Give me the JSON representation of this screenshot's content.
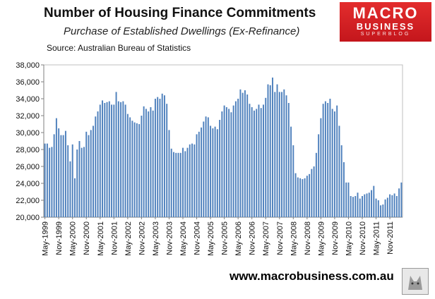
{
  "header": {
    "title": "Number of Housing  Finance Commitments",
    "subtitle": "Purchase of Established Dwellings (Ex-Refinance)",
    "source": "Source:  Australian Bureau of Statistics"
  },
  "logo": {
    "line1": "MACRO",
    "line2": "BUSINESS",
    "line3": "SUPERBLOG"
  },
  "footer": {
    "website": "www.macrobusiness.com.au"
  },
  "colors": {
    "bar": "#4f81bd",
    "plot_background": "#ffffff",
    "logo_red": "#d1202a"
  },
  "chart_data": {
    "type": "bar",
    "title": "Number of Housing  Finance Commitments",
    "subtitle": "Purchase of Established Dwellings (Ex-Refinance)",
    "xlabel": "",
    "ylabel": "",
    "ylim": [
      20000,
      38000
    ],
    "yticks": [
      "20,000",
      "22,000",
      "24,000",
      "26,000",
      "28,000",
      "30,000",
      "32,000",
      "34,000",
      "36,000",
      "38,000"
    ],
    "xtick_labels": [
      "May-1999",
      "Nov-1999",
      "May-2000",
      "Nov-2000",
      "May-2001",
      "Nov-2001",
      "May-2002",
      "Nov-2002",
      "May-2003",
      "Nov-2003",
      "May-2004",
      "Nov-2004",
      "May-2005",
      "Nov-2005",
      "May-2006",
      "Nov-2006",
      "May-2007",
      "Nov-2007",
      "May-2008",
      "Nov-2008",
      "May-2009",
      "Nov-2009",
      "May-2010",
      "Nov-2010",
      "May-2011",
      "Nov-2011"
    ],
    "grid": false,
    "legend": "none",
    "start_period": "May-1999",
    "frequency": "monthly",
    "values": [
      28700,
      28700,
      28200,
      28300,
      29800,
      31700,
      30500,
      29700,
      29700,
      30200,
      28500,
      26600,
      28600,
      24600,
      28000,
      29000,
      28200,
      28300,
      30100,
      29700,
      30300,
      30800,
      31900,
      32500,
      33300,
      33800,
      33500,
      33600,
      33700,
      33300,
      33300,
      34800,
      33700,
      33600,
      33700,
      33300,
      32200,
      31800,
      31400,
      31200,
      31100,
      31000,
      32000,
      33100,
      32800,
      32500,
      33000,
      32600,
      34000,
      34200,
      34000,
      34600,
      34400,
      33400,
      30300,
      28100,
      27700,
      27600,
      27600,
      27600,
      28200,
      27800,
      28200,
      28600,
      28700,
      28600,
      29800,
      30100,
      30600,
      31300,
      31900,
      31800,
      30800,
      30500,
      30700,
      30400,
      31500,
      32500,
      33200,
      33000,
      32800,
      32400,
      33200,
      33700,
      34000,
      35100,
      34700,
      35000,
      34500,
      33400,
      33000,
      32600,
      32800,
      33300,
      32900,
      33300,
      34100,
      35700,
      35600,
      36500,
      34800,
      35700,
      34800,
      34800,
      35100,
      34400,
      33500,
      30700,
      28500,
      25200,
      24700,
      24600,
      24500,
      24600,
      24900,
      25100,
      25700,
      26000,
      27600,
      29800,
      31700,
      33400,
      33700,
      33500,
      34000,
      32800,
      32500,
      33200,
      30800,
      28500,
      26500,
      24100,
      24100,
      22500,
      22400,
      22500,
      22900,
      22200,
      22500,
      22700,
      22800,
      22900,
      23200,
      23700,
      22200,
      22000,
      21400,
      21500,
      22100,
      22300,
      22700,
      22600,
      22800,
      22500,
      23400,
      24100
    ]
  }
}
